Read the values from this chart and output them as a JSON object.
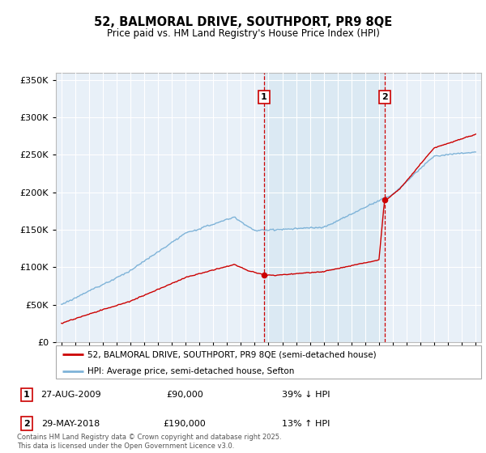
{
  "title": "52, BALMORAL DRIVE, SOUTHPORT, PR9 8QE",
  "subtitle": "Price paid vs. HM Land Registry's House Price Index (HPI)",
  "hpi_color": "#7eb3d8",
  "price_color": "#cc0000",
  "background_color": "#e8f0f8",
  "shaded_color": "#dce8f4",
  "annotation1": {
    "label": "1",
    "date": "27-AUG-2009",
    "price": 90000,
    "hpi_pct": "39% ↓ HPI",
    "year": 2009.67
  },
  "annotation2": {
    "label": "2",
    "date": "29-MAY-2018",
    "price": 190000,
    "hpi_pct": "13% ↑ HPI",
    "year": 2018.42
  },
  "legend_line1": "52, BALMORAL DRIVE, SOUTHPORT, PR9 8QE (semi-detached house)",
  "legend_line2": "HPI: Average price, semi-detached house, Sefton",
  "footer": "Contains HM Land Registry data © Crown copyright and database right 2025.\nThis data is licensed under the Open Government Licence v3.0.",
  "ylim": [
    0,
    360000
  ],
  "yticks": [
    0,
    50000,
    100000,
    150000,
    200000,
    250000,
    300000,
    350000
  ],
  "xlim_start": 1994.6,
  "xlim_end": 2025.4
}
